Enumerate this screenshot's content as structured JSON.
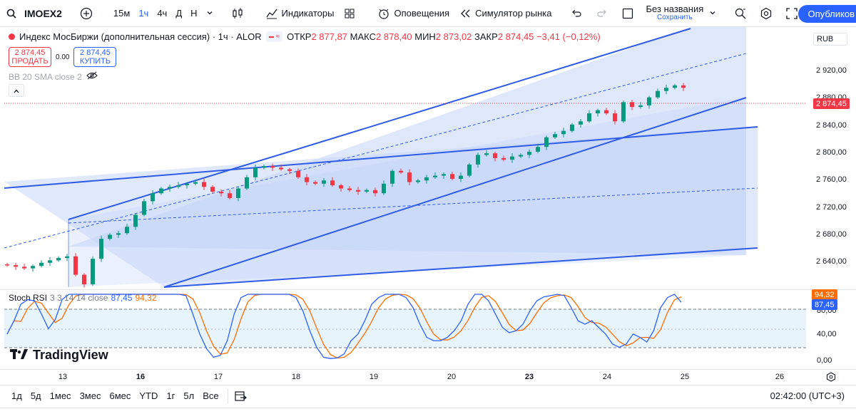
{
  "toolbar": {
    "symbol": "IMOEX2",
    "intervals": [
      "15м",
      "1ч",
      "4ч",
      "Д",
      "Н"
    ],
    "active_interval": "1ч",
    "indicators_label": "Индикаторы",
    "alerts_label": "Оповещения",
    "replay_label": "Симулятор рынка",
    "layout_name": "Без названия",
    "layout_saved": "Сохранить",
    "publish_label": "Опубликов"
  },
  "legend": {
    "title": "Индекс МосБиржи (дополнительная сессия) · 1ч · ALOR",
    "open_label": "ОТКР",
    "open": "2 877,87",
    "high_label": "МАКС",
    "high": "2 878,40",
    "low_label": "МИН",
    "low": "2 873,02",
    "close_label": "ЗАКР",
    "close": "2 874,45",
    "change": "−3,41 (−0,12%)",
    "status_glyph": "≈"
  },
  "trade": {
    "sell_price": "2 874,45",
    "sell_label": "ПРОДАТЬ",
    "spread": "0.00",
    "buy_price": "2 874,45",
    "buy_label": "КУПИТЬ"
  },
  "bb_indicator": "BB 20 SMA close 2",
  "currency": "RUB",
  "price_axis": [
    "2 920,00",
    "2 880,00",
    "2 840,00",
    "2 800,00",
    "2 760,00",
    "2 720,00",
    "2 680,00",
    "2 640,00"
  ],
  "last_price_badge": "2 874,45",
  "stoch": {
    "name": "Stoch RSI",
    "params": "3 3 14 14 close",
    "k": "87,45",
    "d": "94,32",
    "axis": [
      "80,00",
      "40,00",
      "0,00"
    ]
  },
  "watermark": "TradingView",
  "time_axis": [
    {
      "label": "13",
      "bold": false
    },
    {
      "label": "16",
      "bold": true
    },
    {
      "label": "17",
      "bold": false
    },
    {
      "label": "18",
      "bold": false
    },
    {
      "label": "19",
      "bold": false
    },
    {
      "label": "20",
      "bold": false
    },
    {
      "label": "23",
      "bold": true
    },
    {
      "label": "24",
      "bold": false
    },
    {
      "label": "25",
      "bold": false
    },
    {
      "label": "26",
      "bold": false
    }
  ],
  "ranges": [
    "1д",
    "5д",
    "1мес",
    "3мес",
    "6мес",
    "YTD",
    "1г",
    "5л",
    "Все"
  ],
  "clock": "02:42:00 (UTC+3)",
  "colors": {
    "accent": "#2962ff",
    "up": "#089981",
    "down": "#f23645",
    "channel_fill": "#d6e1fb",
    "stoch_k": "#2962ff",
    "stoch_d": "#ff6d00"
  },
  "chart_data": {
    "type": "candlestick",
    "title": "Индекс МосБиржи (дополнительная сессия) · 1ч · ALOR",
    "currency": "RUB",
    "ylim": [
      2620,
      2950
    ],
    "candles_close_approx": [
      2652,
      2650,
      2648,
      2651,
      2655,
      2658,
      2661,
      2663,
      2640,
      2628,
      2660,
      2685,
      2690,
      2692,
      2700,
      2715,
      2732,
      2742,
      2748,
      2750,
      2752,
      2754,
      2756,
      2750,
      2744,
      2742,
      2736,
      2748,
      2762,
      2774,
      2776,
      2774,
      2772,
      2770,
      2762,
      2756,
      2754,
      2758,
      2752,
      2748,
      2746,
      2744,
      2746,
      2742,
      2754,
      2770,
      2768,
      2756,
      2758,
      2762,
      2764,
      2766,
      2760,
      2764,
      2778,
      2790,
      2792,
      2786,
      2784,
      2788,
      2790,
      2794,
      2800,
      2812,
      2816,
      2820,
      2828,
      2832,
      2842,
      2846,
      2842,
      2832,
      2856,
      2850,
      2852,
      2862,
      2870,
      2874,
      2877,
      2874
    ],
    "stoch_rsi": {
      "k_last": 87.45,
      "d_last": 94.32,
      "bands": [
        20,
        80
      ]
    }
  }
}
